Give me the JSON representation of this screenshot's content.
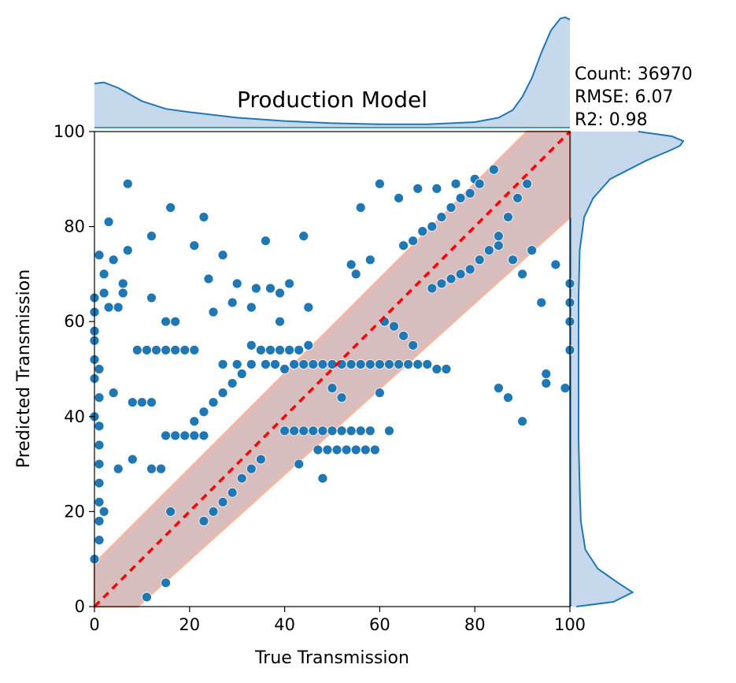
{
  "chart_data": {
    "type": "scatter",
    "title": "Production Model",
    "xlabel": "True Transmission",
    "ylabel": "Predicted Transmission",
    "xlim": [
      0,
      100
    ],
    "ylim": [
      0,
      100
    ],
    "xticks": [
      "0",
      "20",
      "40",
      "60",
      "80",
      "100"
    ],
    "yticks": [
      "0",
      "20",
      "40",
      "60",
      "80",
      "100"
    ],
    "stats": [
      "Count: 36970",
      "RMSE: 6.07",
      "R2: 0.98"
    ],
    "series": [
      {
        "name": "Predictions",
        "kind": "scatter",
        "color": "#1f77b4",
        "note": "sample of visible scatter points (x = true, y = predicted)",
        "points": [
          [
            7,
            89
          ],
          [
            16,
            84
          ],
          [
            23,
            82
          ],
          [
            3,
            81
          ],
          [
            12,
            78
          ],
          [
            21,
            76
          ],
          [
            27,
            74
          ],
          [
            1,
            74
          ],
          [
            4,
            73
          ],
          [
            6,
            68
          ],
          [
            7,
            75
          ],
          [
            2,
            70
          ],
          [
            2,
            66
          ],
          [
            3,
            63
          ],
          [
            5,
            63
          ],
          [
            6,
            66
          ],
          [
            12,
            65
          ],
          [
            15,
            60
          ],
          [
            17,
            60
          ],
          [
            25,
            62
          ],
          [
            29,
            64
          ],
          [
            33,
            63
          ],
          [
            39,
            60
          ],
          [
            36,
            77
          ],
          [
            44,
            78
          ],
          [
            24,
            69
          ],
          [
            30,
            68
          ],
          [
            34,
            67
          ],
          [
            37,
            67
          ],
          [
            39,
            66
          ],
          [
            41,
            68
          ],
          [
            45,
            63
          ],
          [
            54,
            72
          ],
          [
            55,
            70
          ],
          [
            58,
            73
          ],
          [
            60,
            89
          ],
          [
            56,
            84
          ],
          [
            64,
            86
          ],
          [
            68,
            88
          ],
          [
            72,
            88
          ],
          [
            76,
            89
          ],
          [
            80,
            90
          ],
          [
            84,
            92
          ],
          [
            85,
            76
          ],
          [
            88,
            73
          ],
          [
            90,
            70
          ],
          [
            92,
            75
          ],
          [
            94,
            64
          ],
          [
            97,
            72
          ],
          [
            9,
            54
          ],
          [
            11,
            54
          ],
          [
            13,
            54
          ],
          [
            15,
            54
          ],
          [
            17,
            54
          ],
          [
            19,
            54
          ],
          [
            21,
            54
          ],
          [
            4,
            45
          ],
          [
            8,
            43
          ],
          [
            10,
            43
          ],
          [
            12,
            43
          ],
          [
            15,
            36
          ],
          [
            17,
            36
          ],
          [
            19,
            36
          ],
          [
            21,
            36
          ],
          [
            23,
            36
          ],
          [
            12,
            29
          ],
          [
            14,
            29
          ],
          [
            5,
            29
          ],
          [
            8,
            31
          ],
          [
            16,
            20
          ],
          [
            15,
            5
          ],
          [
            11,
            2
          ],
          [
            27,
            51
          ],
          [
            30,
            51
          ],
          [
            33,
            51
          ],
          [
            36,
            51
          ],
          [
            38,
            51
          ],
          [
            40,
            50
          ],
          [
            42,
            51
          ],
          [
            44,
            51
          ],
          [
            46,
            51
          ],
          [
            48,
            51
          ],
          [
            50,
            51
          ],
          [
            52,
            51
          ],
          [
            54,
            51
          ],
          [
            56,
            51
          ],
          [
            58,
            51
          ],
          [
            60,
            51
          ],
          [
            62,
            51
          ],
          [
            64,
            51
          ],
          [
            66,
            51
          ],
          [
            68,
            51
          ],
          [
            70,
            51
          ],
          [
            72,
            50
          ],
          [
            74,
            50
          ],
          [
            50,
            46
          ],
          [
            52,
            44
          ],
          [
            60,
            45
          ],
          [
            62,
            37
          ],
          [
            58,
            37
          ],
          [
            56,
            37
          ],
          [
            54,
            37
          ],
          [
            52,
            37
          ],
          [
            50,
            37
          ],
          [
            48,
            37
          ],
          [
            46,
            37
          ],
          [
            44,
            37
          ],
          [
            42,
            37
          ],
          [
            40,
            37
          ],
          [
            47,
            33
          ],
          [
            49,
            33
          ],
          [
            51,
            33
          ],
          [
            53,
            33
          ],
          [
            55,
            33
          ],
          [
            57,
            33
          ],
          [
            59,
            33
          ],
          [
            43,
            30
          ],
          [
            48,
            27
          ],
          [
            85,
            46
          ],
          [
            87,
            44
          ],
          [
            90,
            39
          ],
          [
            95,
            49
          ],
          [
            95,
            47
          ],
          [
            99,
            46
          ],
          [
            100,
            54
          ],
          [
            100,
            60
          ],
          [
            100,
            64
          ],
          [
            100,
            68
          ],
          [
            0,
            40
          ],
          [
            0,
            48
          ],
          [
            0,
            52
          ],
          [
            0,
            56
          ],
          [
            0,
            58
          ],
          [
            0,
            62
          ],
          [
            1,
            38
          ],
          [
            1,
            34
          ],
          [
            1,
            30
          ],
          [
            1,
            26
          ],
          [
            1,
            22
          ],
          [
            1,
            18
          ],
          [
            1,
            14
          ],
          [
            0,
            10
          ],
          [
            0,
            65
          ],
          [
            1,
            44
          ],
          [
            1,
            50
          ],
          [
            2,
            20
          ],
          [
            33,
            55
          ],
          [
            35,
            54
          ],
          [
            37,
            54
          ],
          [
            39,
            54
          ],
          [
            41,
            54
          ],
          [
            43,
            54
          ],
          [
            45,
            55
          ],
          [
            31,
            49
          ],
          [
            29,
            47
          ],
          [
            27,
            45
          ],
          [
            25,
            43
          ],
          [
            23,
            41
          ],
          [
            21,
            39
          ],
          [
            35,
            31
          ],
          [
            33,
            29
          ],
          [
            31,
            27
          ],
          [
            29,
            24
          ],
          [
            27,
            22
          ],
          [
            25,
            20
          ],
          [
            23,
            18
          ],
          [
            61,
            60
          ],
          [
            63,
            59
          ],
          [
            65,
            57
          ],
          [
            67,
            55
          ],
          [
            71,
            67
          ],
          [
            73,
            68
          ],
          [
            75,
            69
          ],
          [
            77,
            70
          ],
          [
            79,
            71
          ],
          [
            81,
            73
          ],
          [
            83,
            75
          ],
          [
            85,
            78
          ],
          [
            87,
            82
          ],
          [
            89,
            86
          ],
          [
            91,
            89
          ],
          [
            65,
            76
          ],
          [
            67,
            77
          ],
          [
            69,
            79
          ],
          [
            71,
            80
          ],
          [
            73,
            82
          ],
          [
            75,
            84
          ],
          [
            77,
            86
          ],
          [
            79,
            87
          ],
          [
            81,
            89
          ]
        ]
      },
      {
        "name": "Dense band",
        "kind": "band",
        "color": "#c9a7a7",
        "note": "overlapping points along y = x",
        "x": [
          0,
          100
        ]
      },
      {
        "name": "Identity line",
        "kind": "line",
        "style": "dashed",
        "color": "#ff0000",
        "x": [
          0,
          100
        ],
        "y": [
          0,
          100
        ]
      }
    ],
    "marginal_x": {
      "type": "kde",
      "color": "#1f77b4",
      "fill": "#c6d9ec",
      "x": [
        0,
        2,
        5,
        10,
        15,
        20,
        30,
        40,
        50,
        60,
        70,
        80,
        85,
        88,
        90,
        92,
        94,
        96,
        98,
        99,
        100
      ],
      "density": [
        0.4,
        0.41,
        0.36,
        0.24,
        0.17,
        0.14,
        0.09,
        0.06,
        0.04,
        0.03,
        0.03,
        0.05,
        0.09,
        0.16,
        0.28,
        0.45,
        0.68,
        0.88,
        0.99,
        1.0,
        0.98
      ]
    },
    "marginal_y": {
      "type": "kde",
      "color": "#1f77b4",
      "fill": "#c6d9ec",
      "y": [
        0,
        1,
        3,
        5,
        8,
        12,
        18,
        25,
        35,
        45,
        55,
        65,
        75,
        82,
        86,
        90,
        94,
        96,
        97,
        98,
        99,
        100
      ],
      "density": [
        0.05,
        0.38,
        0.55,
        0.42,
        0.24,
        0.13,
        0.09,
        0.08,
        0.07,
        0.07,
        0.07,
        0.07,
        0.08,
        0.12,
        0.2,
        0.35,
        0.68,
        0.88,
        0.97,
        1.0,
        0.9,
        0.6
      ]
    }
  }
}
